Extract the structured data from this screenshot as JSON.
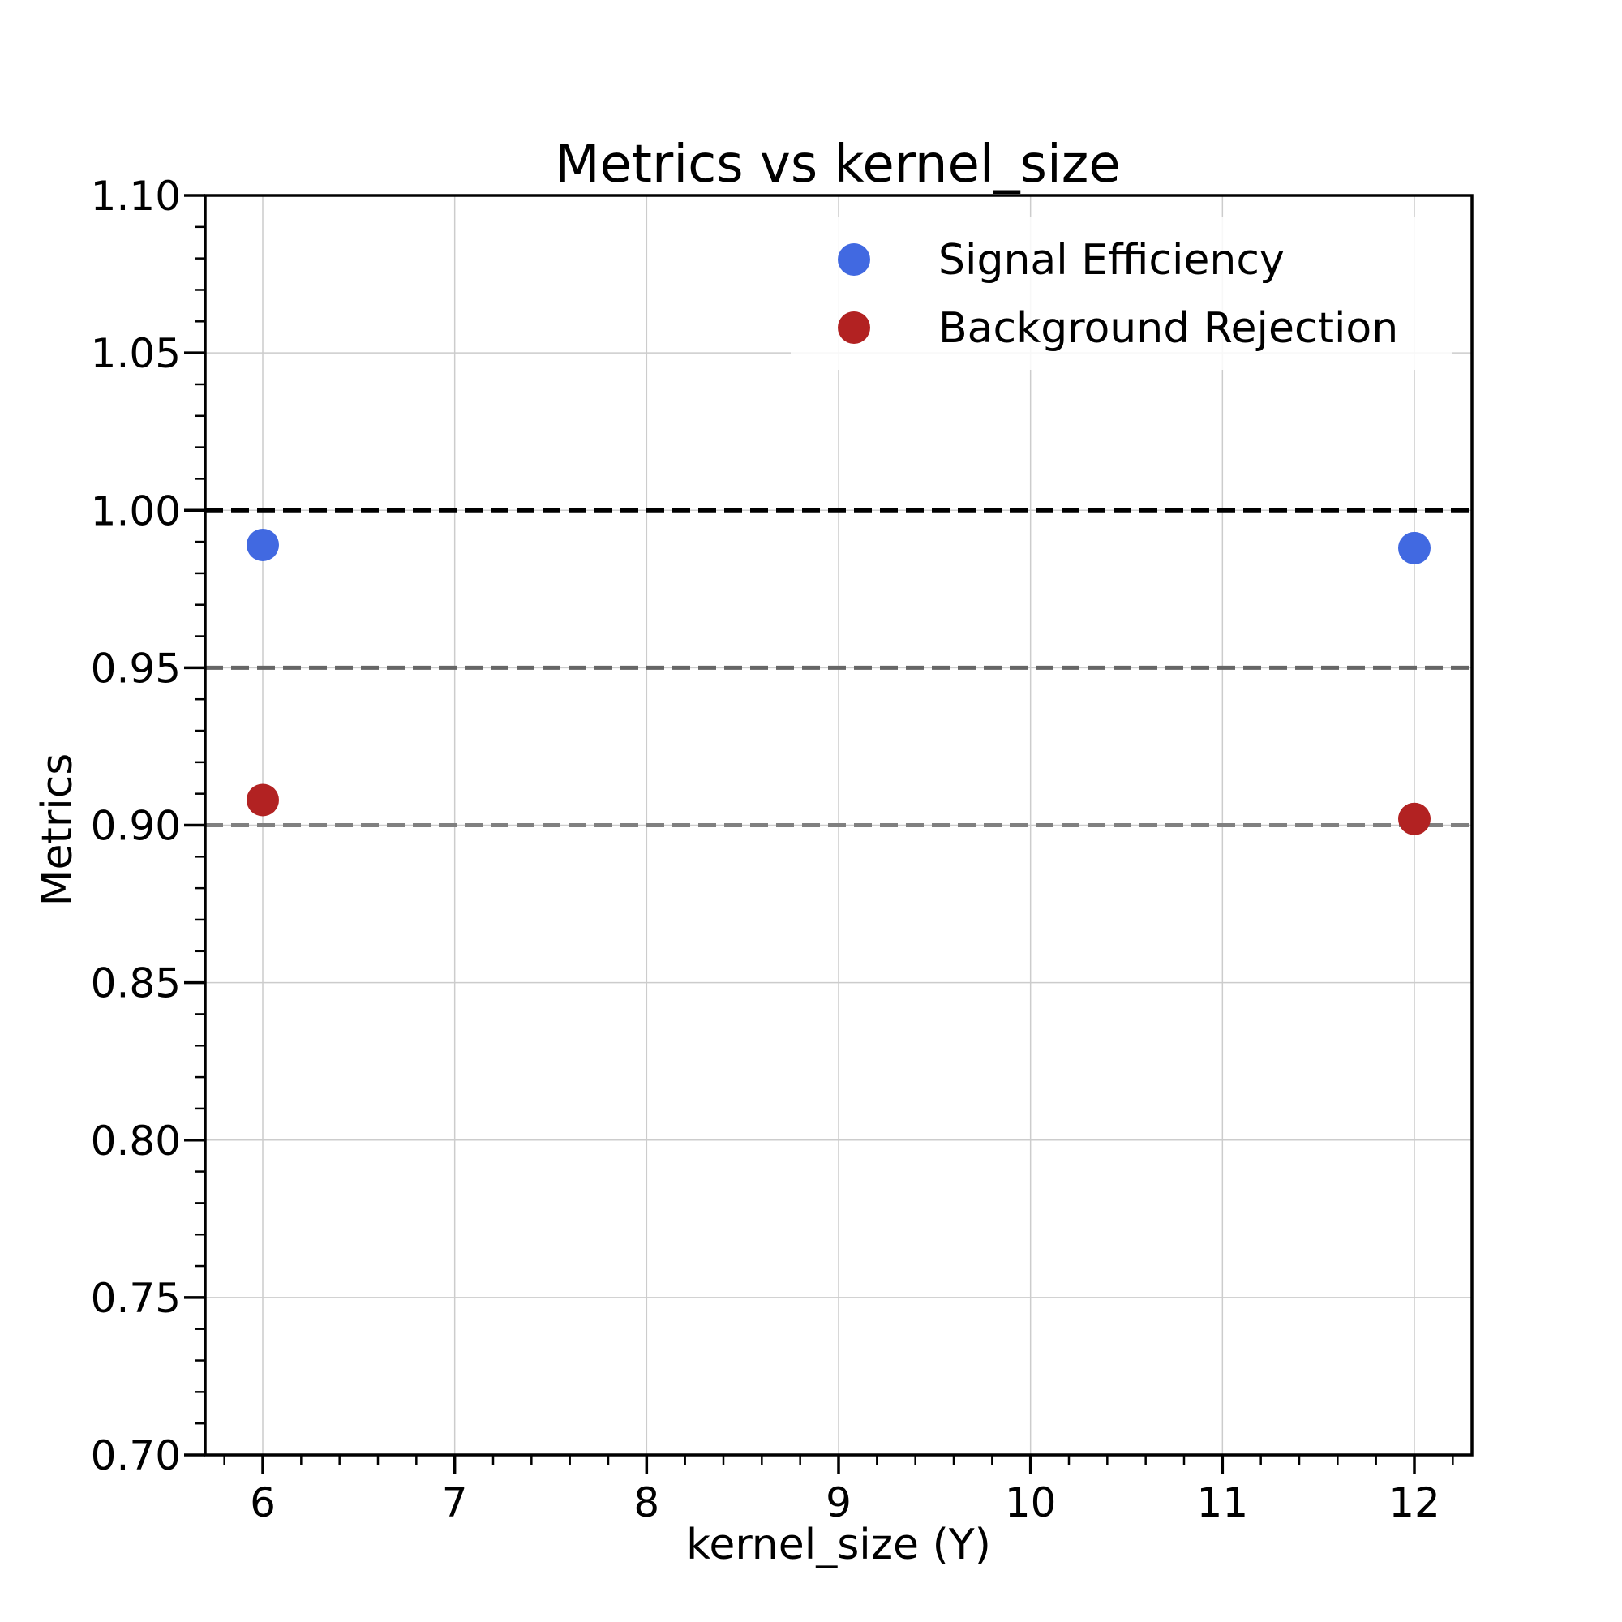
{
  "chart_data": {
    "type": "scatter",
    "title": "Metrics vs kernel_size",
    "xlabel": "kernel_size (Y)",
    "ylabel": "Metrics",
    "xlim": [
      5.7,
      12.3
    ],
    "ylim": [
      0.7,
      1.1
    ],
    "xticks": [
      6,
      7,
      8,
      9,
      10,
      11,
      12
    ],
    "xtick_labels": [
      "6",
      "7",
      "8",
      "9",
      "10",
      "11",
      "12"
    ],
    "yticks": [
      0.7,
      0.75,
      0.8,
      0.85,
      0.9,
      0.95,
      1.0,
      1.05,
      1.1
    ],
    "ytick_labels": [
      "0.70",
      "0.75",
      "0.80",
      "0.85",
      "0.90",
      "0.95",
      "1.00",
      "1.05",
      "1.10"
    ],
    "grid": true,
    "legend_position": "top-right",
    "series": [
      {
        "name": "Signal Efficiency",
        "color": "#4169e1",
        "x": [
          6,
          12
        ],
        "y": [
          0.989,
          0.988
        ]
      },
      {
        "name": "Background Rejection",
        "color": "#b22222",
        "x": [
          6,
          12
        ],
        "y": [
          0.908,
          0.902
        ]
      }
    ],
    "reference_lines": [
      {
        "y": 1.0,
        "color": "#000000",
        "style": "dashed"
      },
      {
        "y": 0.95,
        "color": "#666666",
        "style": "dashed"
      },
      {
        "y": 0.9,
        "color": "#808080",
        "style": "dashed"
      }
    ]
  }
}
